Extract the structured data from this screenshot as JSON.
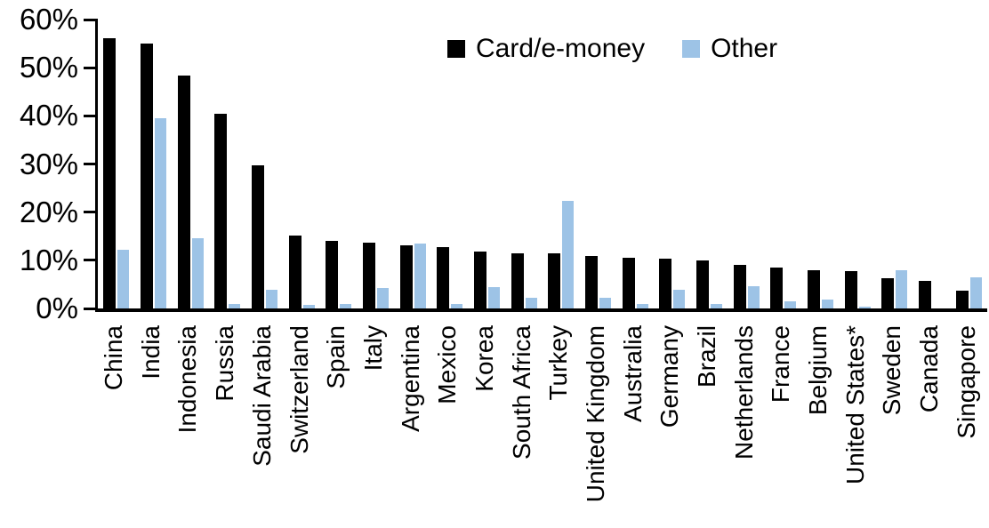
{
  "chart_data": {
    "type": "bar",
    "title": "",
    "xlabel": "",
    "ylabel": "",
    "categories": [
      "China",
      "India",
      "Indonesia",
      "Russia",
      "Saudi Arabia",
      "Switzerland",
      "Spain",
      "Italy",
      "Argentina",
      "Mexico",
      "Korea",
      "South Africa",
      "Turkey",
      "United Kingdom",
      "Australia",
      "Germany",
      "Brazil",
      "Netherlands",
      "France",
      "Belgium",
      "United States*",
      "Sweden",
      "Canada",
      "Singapore"
    ],
    "series": [
      {
        "name": "Card/e-money",
        "color": "#000000",
        "values": [
          56.2,
          55.0,
          48.3,
          40.5,
          29.8,
          15.2,
          14.0,
          13.7,
          13.1,
          12.7,
          11.9,
          11.5,
          11.4,
          10.9,
          10.6,
          10.3,
          9.9,
          9.1,
          8.5,
          8.0,
          7.7,
          6.3,
          5.7,
          3.7
        ]
      },
      {
        "name": "Other",
        "color": "#9DC3E6",
        "values": [
          12.2,
          39.6,
          14.5,
          1.0,
          3.9,
          0.8,
          1.0,
          4.3,
          13.5,
          1.0,
          4.4,
          2.2,
          22.4,
          2.2,
          0.9,
          3.8,
          1.0,
          4.6,
          1.4,
          1.8,
          0.3,
          7.9,
          0,
          6.4
        ]
      }
    ],
    "ylim": [
      0,
      60
    ],
    "ytick_step": 10,
    "yticks": [
      "0%",
      "10%",
      "20%",
      "30%",
      "40%",
      "50%",
      "60%"
    ],
    "legend_position": "top-center",
    "grid": false,
    "axis_color": "#000000"
  }
}
